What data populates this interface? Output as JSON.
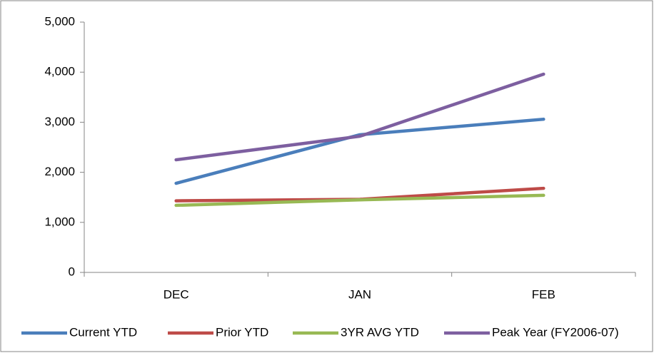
{
  "chart_data": {
    "type": "line",
    "categories": [
      "DEC",
      "JAN",
      "FEB"
    ],
    "series": [
      {
        "name": "Current YTD",
        "color": "#4a7ebb",
        "values": [
          1780,
          2750,
          3060
        ]
      },
      {
        "name": "Prior YTD",
        "color": "#be4b48",
        "values": [
          1430,
          1460,
          1680
        ]
      },
      {
        "name": "3YR AVG YTD",
        "color": "#98b954",
        "values": [
          1340,
          1450,
          1540
        ]
      },
      {
        "name": "Peak Year (FY2006-07)",
        "color": "#7d5fa0",
        "values": [
          2250,
          2720,
          3960
        ]
      }
    ],
    "ylim": [
      0,
      5000
    ],
    "yticks": [
      0,
      {
        "value": 1000,
        "label": "1,000"
      },
      {
        "value": 2000,
        "label": "2,000"
      },
      {
        "value": 3000,
        "label": "3,000"
      },
      {
        "value": 4000,
        "label": "4,000"
      },
      {
        "value": 5000,
        "label": "5,000"
      }
    ],
    "grid": false,
    "legend": "bottom"
  }
}
